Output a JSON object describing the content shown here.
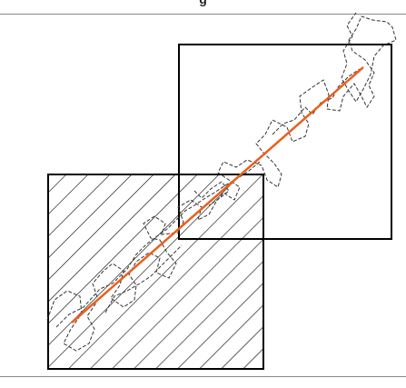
{
  "figure": {
    "title_fragment": "g",
    "colors": {
      "frame": "#888888",
      "box_stroke": "#000000",
      "hatch": "#000000",
      "fit_line": "#e8601c",
      "path": "#333333"
    },
    "elements": {
      "hatched_box": "hatched-square",
      "plain_box": "outline-square",
      "fit_line": "orange-trend-line",
      "path": "dashed-polygon-path"
    }
  }
}
